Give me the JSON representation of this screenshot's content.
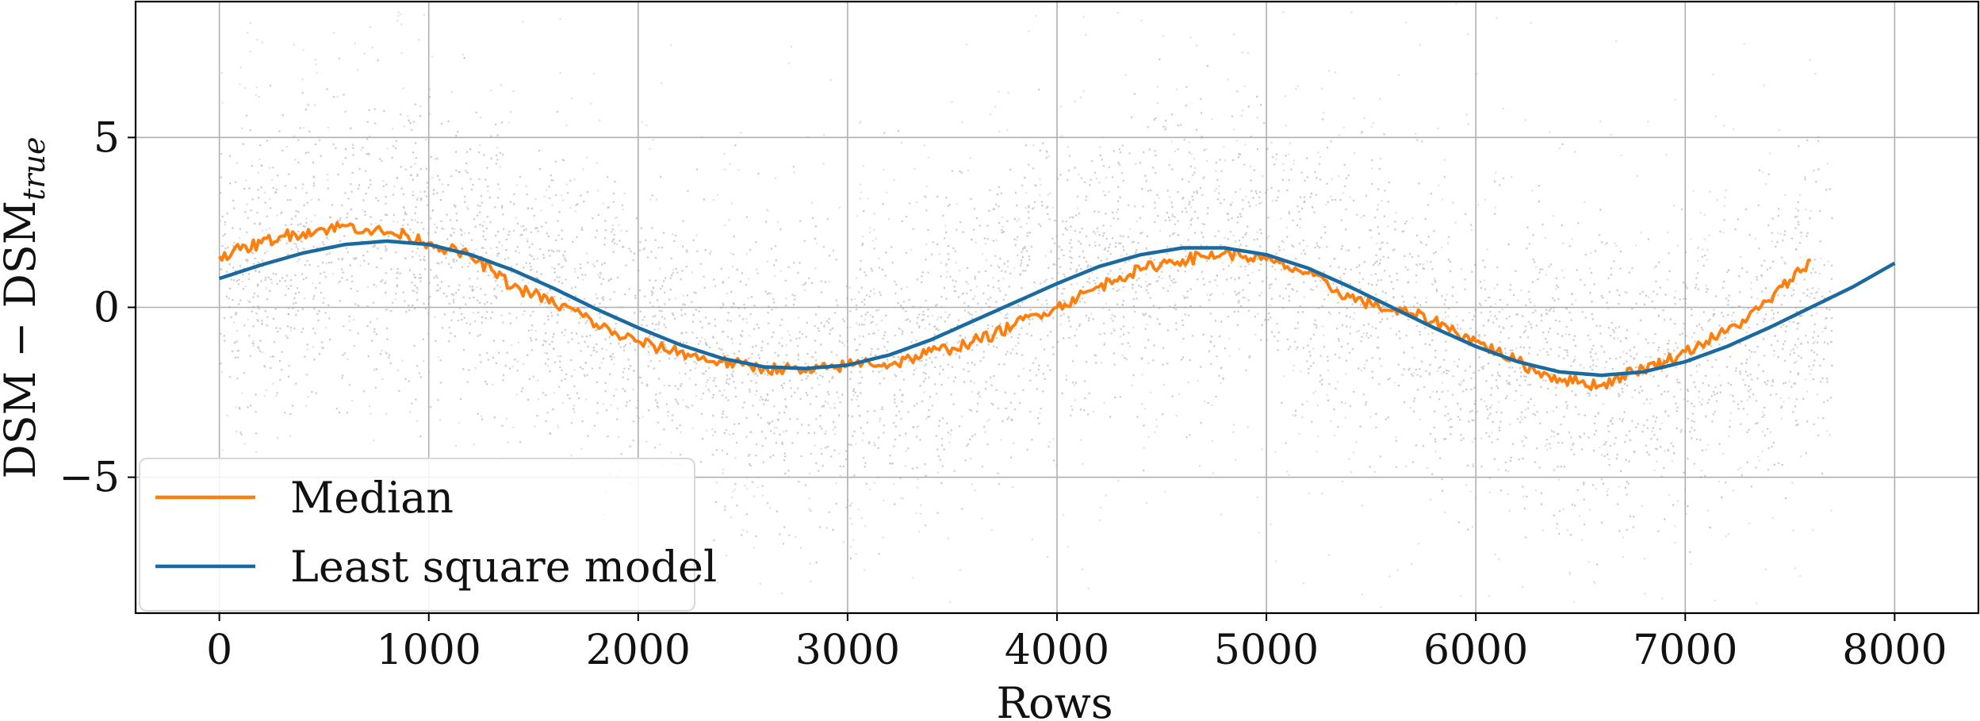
{
  "chart_data": {
    "type": "line",
    "xlabel": "Rows",
    "ylabel": {
      "main": "DSM − DSM",
      "subscript": "true"
    },
    "xlim": [
      -400,
      8400
    ],
    "ylim": [
      -9,
      9
    ],
    "xticks": [
      0,
      1000,
      2000,
      3000,
      4000,
      5000,
      6000,
      7000,
      8000
    ],
    "xtick_labels": [
      "0",
      "1000",
      "2000",
      "3000",
      "4000",
      "5000",
      "6000",
      "7000",
      "8000"
    ],
    "yticks": [
      -5,
      0,
      5
    ],
    "ytick_labels": [
      "−5",
      "0",
      "5"
    ],
    "grid": true,
    "legend": {
      "placement": "lower-left"
    },
    "colors": {
      "scatter": "#a8a8a8",
      "median": "#ff7f0e",
      "model": "#1a6aa0",
      "grid": "#b0b0b0"
    },
    "scatter": {
      "name": "",
      "x_range": [
        0,
        7700
      ],
      "color": "#a8a8a8"
    },
    "series": [
      {
        "name": "Median",
        "color": "#ff7f0e",
        "x": [
          0,
          100,
          200,
          300,
          400,
          500,
          600,
          700,
          800,
          900,
          1000,
          1100,
          1200,
          1300,
          1400,
          1500,
          1600,
          1700,
          1800,
          1900,
          2000,
          2100,
          2200,
          2300,
          2400,
          2500,
          2600,
          2700,
          2800,
          2900,
          3000,
          3100,
          3200,
          3300,
          3400,
          3500,
          3600,
          3700,
          3800,
          3900,
          4000,
          4100,
          4200,
          4300,
          4400,
          4500,
          4600,
          4700,
          4800,
          4900,
          5000,
          5100,
          5200,
          5300,
          5400,
          5500,
          5600,
          5700,
          5800,
          5900,
          6000,
          6100,
          6200,
          6300,
          6400,
          6500,
          6600,
          6700,
          6800,
          6900,
          7000,
          7100,
          7200,
          7300,
          7400,
          7500,
          7600
        ],
        "values": [
          1.5,
          1.7,
          1.9,
          2.1,
          2.2,
          2.3,
          2.4,
          2.3,
          2.2,
          2.1,
          1.9,
          1.7,
          1.5,
          1.1,
          0.6,
          0.4,
          0.1,
          -0.1,
          -0.5,
          -0.8,
          -1.0,
          -1.2,
          -1.3,
          -1.5,
          -1.6,
          -1.7,
          -1.8,
          -1.8,
          -1.9,
          -1.8,
          -1.7,
          -1.6,
          -1.7,
          -1.5,
          -1.3,
          -1.2,
          -1.0,
          -0.8,
          -0.5,
          -0.2,
          0.0,
          0.3,
          0.6,
          0.9,
          1.1,
          1.3,
          1.4,
          1.5,
          1.6,
          1.5,
          1.4,
          1.2,
          1.0,
          0.6,
          0.3,
          0.1,
          -0.1,
          -0.2,
          -0.4,
          -0.7,
          -1.0,
          -1.3,
          -1.6,
          -1.9,
          -2.1,
          -2.2,
          -2.3,
          -2.0,
          -1.8,
          -1.6,
          -1.3,
          -1.0,
          -0.7,
          -0.3,
          0.2,
          0.8,
          1.4
        ]
      },
      {
        "name": "Least square model",
        "color": "#1a6aa0",
        "x": [
          0,
          200,
          400,
          600,
          800,
          1000,
          1200,
          1400,
          1600,
          1800,
          2000,
          2200,
          2400,
          2600,
          2800,
          3000,
          3200,
          3400,
          3600,
          3800,
          4000,
          4200,
          4400,
          4600,
          4800,
          5000,
          5200,
          5400,
          5600,
          5800,
          6000,
          6200,
          6400,
          6600,
          6800,
          7000,
          7200,
          7400,
          7600,
          7800,
          8000
        ],
        "values": [
          0.85,
          1.25,
          1.6,
          1.85,
          1.95,
          1.85,
          1.55,
          1.1,
          0.55,
          -0.05,
          -0.6,
          -1.1,
          -1.5,
          -1.75,
          -1.8,
          -1.7,
          -1.4,
          -0.95,
          -0.4,
          0.15,
          0.7,
          1.2,
          1.55,
          1.75,
          1.75,
          1.55,
          1.15,
          0.6,
          0.0,
          -0.6,
          -1.15,
          -1.6,
          -1.9,
          -2.0,
          -1.9,
          -1.6,
          -1.15,
          -0.6,
          0.0,
          0.6,
          1.3
        ]
      }
    ]
  }
}
